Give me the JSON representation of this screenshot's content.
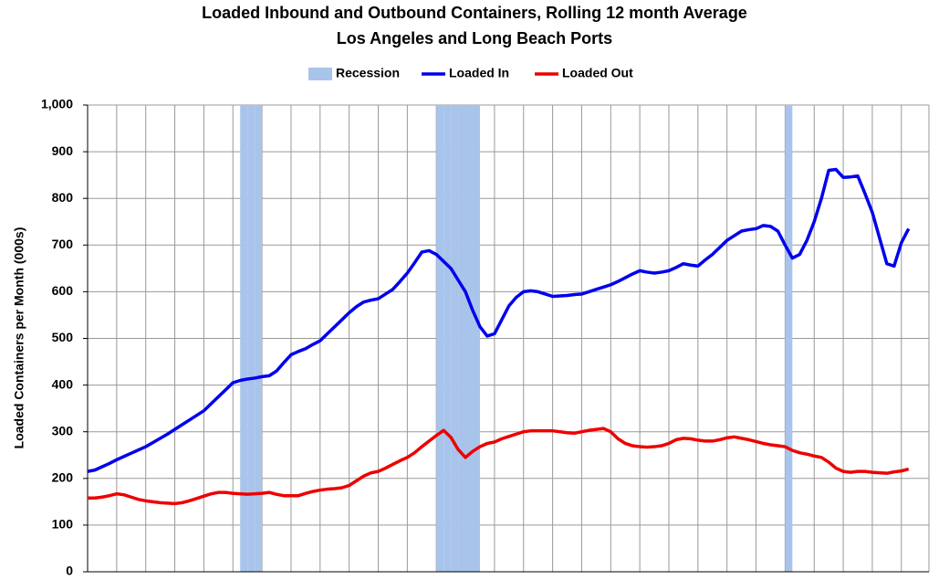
{
  "chart_data": {
    "type": "line",
    "title": "Loaded Inbound and Outbound Containers, Rolling 12 month Average",
    "subtitle": "Los Angeles and Long Beach Ports",
    "y_label": "Loaded Containers per Month (000s)",
    "categories": [
      null,
      null,
      null,
      null,
      null,
      null,
      null,
      null,
      null,
      null,
      null,
      null,
      null,
      null,
      null,
      null,
      null,
      null,
      null,
      null,
      null,
      null,
      null,
      null,
      null,
      null,
      null,
      null,
      null,
      null,
      null,
      null,
      null,
      null,
      null,
      null,
      null,
      null,
      null,
      null,
      null,
      null,
      null,
      null,
      null,
      null,
      null,
      null,
      null,
      null,
      null,
      null,
      null,
      null,
      null,
      null,
      null,
      null,
      null,
      null,
      null,
      null,
      null,
      null,
      null,
      null,
      null,
      null,
      null,
      null,
      null,
      null,
      null,
      null,
      null,
      null,
      null,
      null,
      null,
      null,
      null,
      null,
      null,
      null,
      null,
      null,
      null,
      null,
      null,
      null,
      null,
      null,
      null,
      null,
      null,
      null,
      null,
      null,
      null,
      null,
      null,
      null,
      null,
      null,
      null,
      null,
      null,
      null,
      null,
      null,
      null,
      null,
      null,
      null
    ],
    "series": [
      {
        "name": "Recession",
        "type": "bar",
        "color": "#a9c4eb",
        "values": [
          0,
          0,
          0,
          0,
          0,
          0,
          0,
          0,
          0,
          0,
          0,
          0,
          0,
          0,
          0,
          0,
          0,
          0,
          0,
          0,
          0,
          1000,
          1000,
          1000,
          0,
          0,
          0,
          0,
          0,
          0,
          0,
          0,
          0,
          0,
          0,
          0,
          0,
          0,
          0,
          0,
          0,
          0,
          0,
          0,
          0,
          0,
          0,
          0,
          1000,
          1000,
          1000,
          1000,
          1000,
          1000,
          0,
          0,
          0,
          0,
          0,
          0,
          0,
          0,
          0,
          0,
          0,
          0,
          0,
          0,
          0,
          0,
          0,
          0,
          0,
          0,
          0,
          0,
          0,
          0,
          0,
          0,
          0,
          0,
          0,
          0,
          0,
          0,
          0,
          0,
          0,
          0,
          0,
          0,
          0,
          0,
          0,
          0,
          1000,
          0,
          0,
          0,
          0,
          0,
          0,
          0,
          0,
          0,
          0,
          0,
          0,
          0,
          0,
          0,
          0,
          0
        ]
      },
      {
        "name": "Loaded In",
        "color": "#0000ee",
        "values": [
          215,
          218,
          225,
          232,
          240,
          247,
          254,
          261,
          268,
          277,
          286,
          295,
          305,
          315,
          325,
          335,
          345,
          360,
          375,
          390,
          405,
          410,
          413,
          415,
          418,
          420,
          430,
          448,
          465,
          472,
          478,
          487,
          495,
          510,
          525,
          540,
          555,
          568,
          578,
          582,
          585,
          595,
          605,
          622,
          640,
          662,
          685,
          688,
          680,
          665,
          650,
          625,
          600,
          560,
          525,
          505,
          510,
          540,
          570,
          588,
          600,
          602,
          600,
          595,
          590,
          591,
          592,
          594,
          595,
          600,
          605,
          610,
          615,
          622,
          630,
          638,
          645,
          642,
          640,
          642,
          645,
          652,
          660,
          657,
          655,
          668,
          680,
          695,
          710,
          720,
          730,
          733,
          735,
          742,
          740,
          730,
          700,
          672,
          680,
          710,
          750,
          800,
          860,
          862,
          845,
          846,
          848,
          810,
          770,
          715,
          660,
          655,
          705,
          735
        ]
      },
      {
        "name": "Loaded Out",
        "color": "#ee0000",
        "values": [
          158,
          158,
          160,
          163,
          167,
          165,
          160,
          155,
          152,
          150,
          148,
          147,
          146,
          148,
          152,
          157,
          162,
          167,
          170,
          170,
          168,
          167,
          166,
          167,
          168,
          170,
          166,
          163,
          163,
          163,
          168,
          172,
          175,
          177,
          178,
          180,
          185,
          195,
          205,
          212,
          215,
          222,
          230,
          238,
          245,
          255,
          268,
          280,
          292,
          303,
          288,
          262,
          245,
          258,
          268,
          275,
          278,
          285,
          290,
          295,
          300,
          302,
          302,
          302,
          302,
          300,
          298,
          297,
          300,
          303,
          305,
          307,
          300,
          285,
          275,
          270,
          268,
          267,
          268,
          270,
          275,
          283,
          286,
          285,
          282,
          280,
          280,
          283,
          287,
          289,
          286,
          283,
          279,
          275,
          272,
          270,
          268,
          260,
          255,
          252,
          248,
          245,
          235,
          222,
          215,
          213,
          215,
          215,
          213,
          212,
          211,
          214,
          216,
          220
        ]
      }
    ],
    "ylim": [
      0,
      1000
    ],
    "yticks": [
      0,
      100,
      200,
      300,
      400,
      500,
      600,
      700,
      800,
      900,
      {
        "value": 1000,
        "label": "1,000"
      }
    ],
    "grid": true,
    "legend": "top"
  }
}
